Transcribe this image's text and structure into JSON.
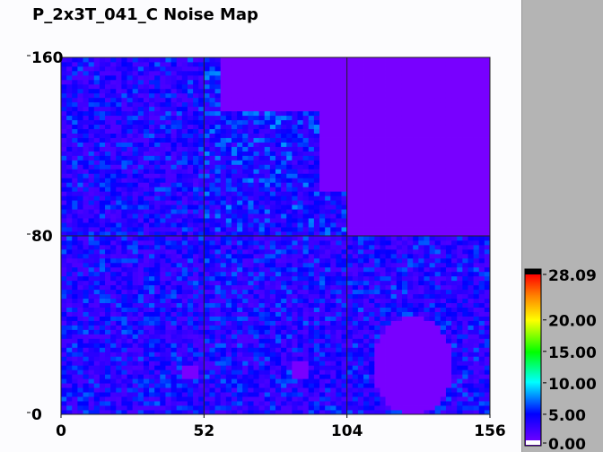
{
  "chart_data": {
    "type": "heatmap",
    "title": "P_2x3T_041_C Noise Map",
    "xlim": [
      0,
      156
    ],
    "ylim": [
      0,
      160
    ],
    "xticks": [
      "0",
      "52",
      "104",
      "156"
    ],
    "yticks": [
      "0",
      "80",
      "160"
    ],
    "xtick_values": [
      0,
      52,
      104,
      156
    ],
    "ytick_values": [
      0,
      80,
      160
    ],
    "grid": true,
    "typical_value_range": [
      2,
      7
    ],
    "low_noise_regions": [
      {
        "shape": "rect",
        "x": [
          104,
          156
        ],
        "y": [
          80,
          160
        ]
      },
      {
        "shape": "rect",
        "x": [
          58,
          94
        ],
        "y": [
          136,
          160
        ]
      },
      {
        "shape": "rect",
        "x": [
          94,
          104
        ],
        "y": [
          100,
          160
        ]
      },
      {
        "shape": "ellipse",
        "cx": 128,
        "cy": 22,
        "rx": 15,
        "ry": 22
      },
      {
        "shape": "rect",
        "x": [
          44,
          50
        ],
        "y": [
          16,
          22
        ]
      },
      {
        "shape": "rect",
        "x": [
          84,
          90
        ],
        "y": [
          16,
          24
        ]
      }
    ],
    "colorbar": {
      "min": 0.0,
      "max": 28.09,
      "tick_labels": [
        "28.09",
        "20.00",
        "15.00",
        "10.00",
        "5.00",
        "0.00"
      ],
      "tick_values": [
        28.09,
        20,
        15,
        10,
        5,
        0
      ],
      "colors": [
        "#8000ff",
        "#0000ff",
        "#00ffff",
        "#00ff00",
        "#ffff00",
        "#ff0000",
        "#000000"
      ]
    }
  }
}
